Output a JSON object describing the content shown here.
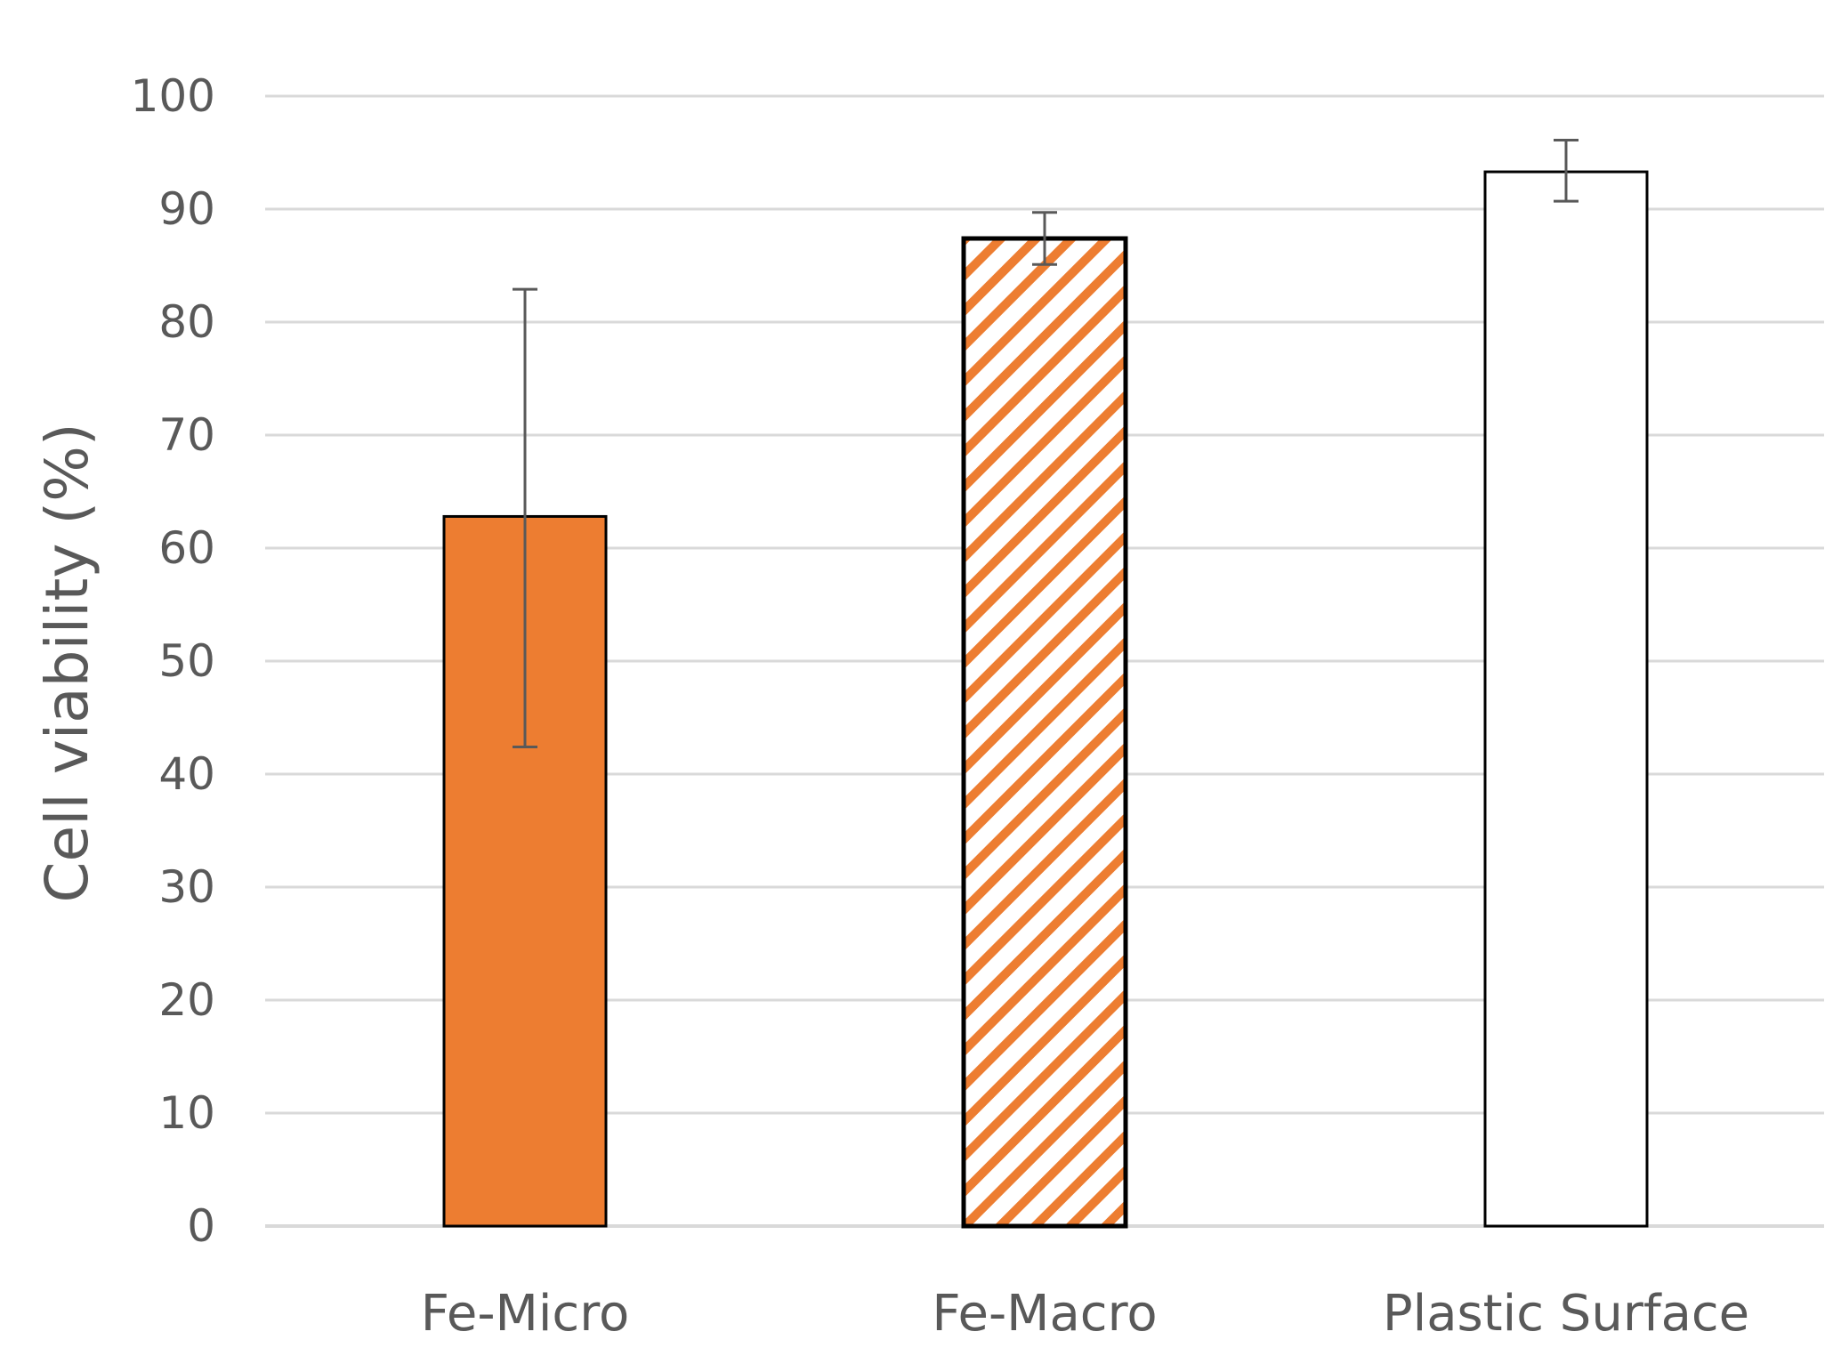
{
  "chart_data": {
    "type": "bar",
    "title": "",
    "xlabel": "",
    "ylabel": "Cell viability (%)",
    "ylim": [
      0,
      100
    ],
    "yticks": [
      0,
      10,
      20,
      30,
      40,
      50,
      60,
      70,
      80,
      90,
      100
    ],
    "grid": true,
    "legend": "none",
    "categories": [
      "Fe-Micro",
      "Fe-Macro",
      "Plastic Surface"
    ],
    "values": [
      62.8,
      87.4,
      93.3
    ],
    "error_low": [
      42.4,
      85.1,
      90.7
    ],
    "error_high": [
      82.9,
      89.7,
      96.1
    ],
    "fills": [
      "solid",
      "hatched",
      "empty"
    ],
    "colors": {
      "accent": "#ED7D31",
      "bar_outline": "#000000",
      "text": "#595959",
      "grid": "#D9D9D9",
      "error_bar": "#595959"
    }
  }
}
